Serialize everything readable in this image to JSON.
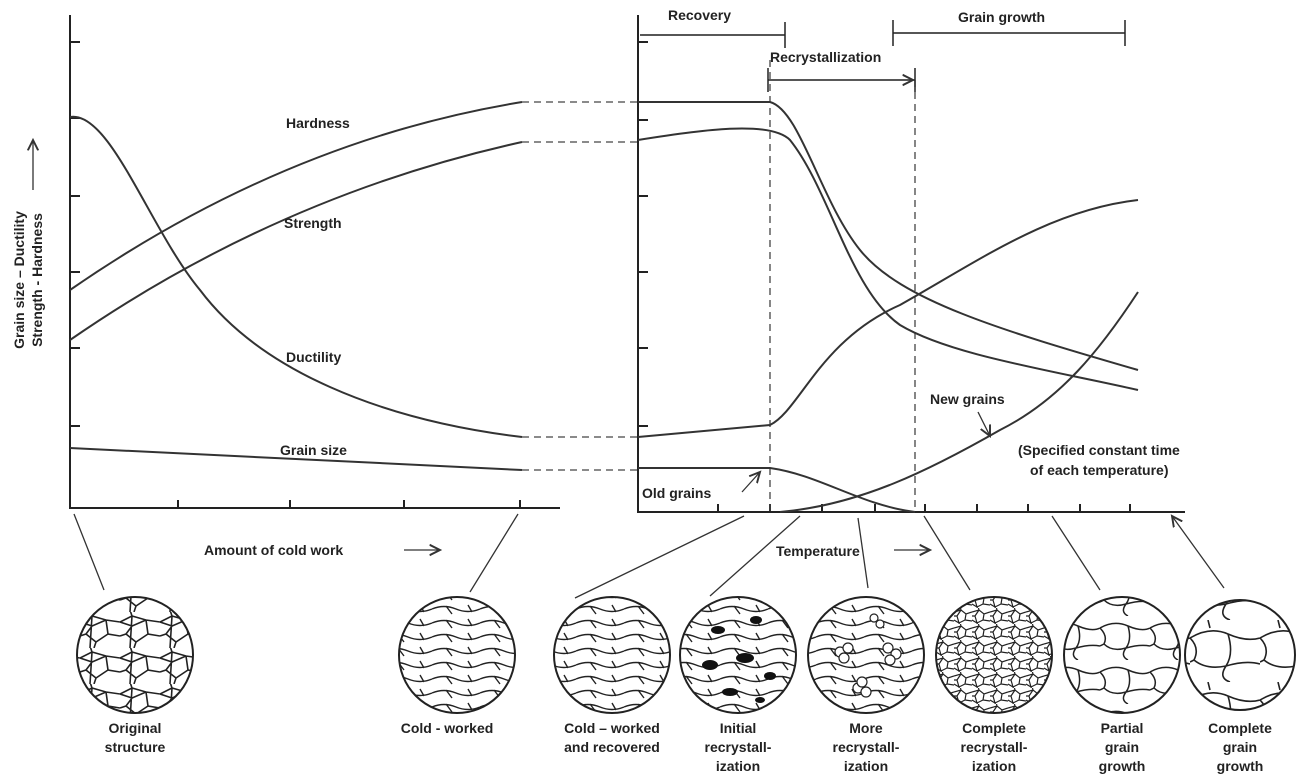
{
  "left_panel": {
    "y_axis_label": [
      "Grain size – Ductility",
      "Strength - Hardness"
    ],
    "x_axis_label": "Amount of cold work",
    "curves": [
      "Hardness",
      "Strength",
      "Ductility",
      "Grain size"
    ]
  },
  "right_panel": {
    "stages": [
      "Recovery",
      "Recrystallization",
      "Grain growth"
    ],
    "curves": [
      "Old grains",
      "New grains"
    ],
    "note": [
      "(Specified constant time",
      "of each temperature)"
    ],
    "x_axis_label": "Temperature"
  },
  "microstructures": [
    {
      "label": [
        "Original",
        "structure"
      ]
    },
    {
      "label": [
        "Cold - worked"
      ]
    },
    {
      "label": [
        "Cold – worked",
        "and recovered"
      ]
    },
    {
      "label": [
        "Initial",
        "recrystall-",
        "ization"
      ]
    },
    {
      "label": [
        "More",
        "recrystall-",
        "ization"
      ]
    },
    {
      "label": [
        "Complete",
        "recrystall-",
        "ization"
      ]
    },
    {
      "label": [
        "Partial",
        "grain",
        "growth"
      ]
    },
    {
      "label": [
        "Complete",
        "grain",
        "growth"
      ]
    }
  ]
}
